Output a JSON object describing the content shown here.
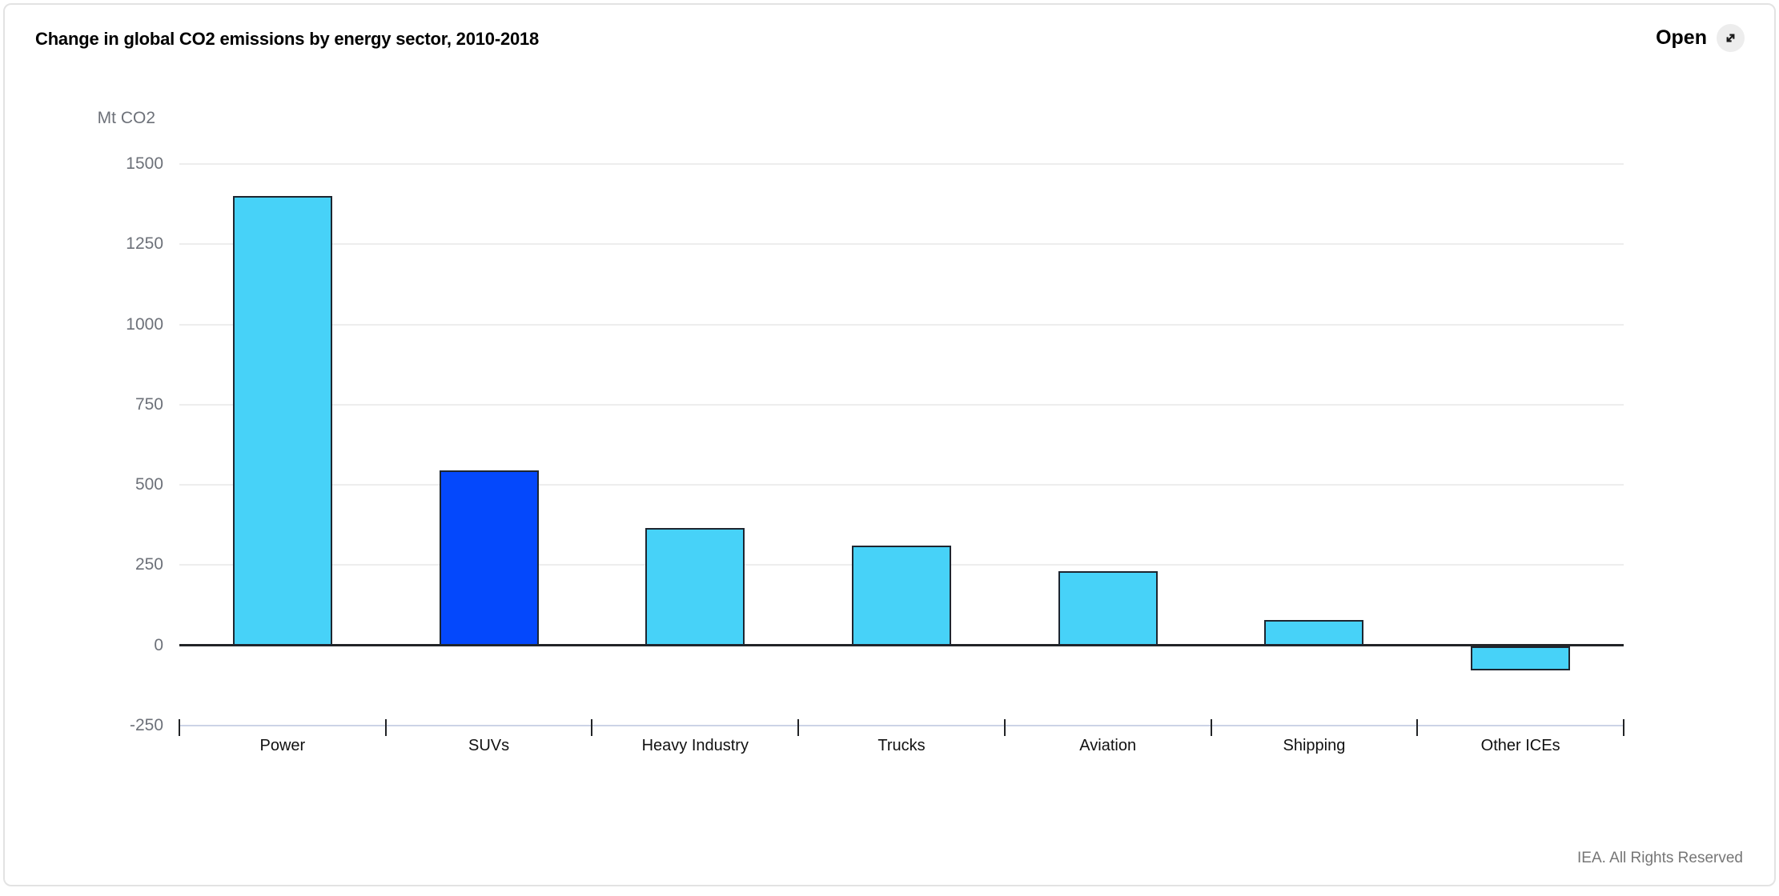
{
  "header": {
    "title": "Change in global CO2 emissions by energy sector, 2010-2018",
    "open_label": "Open"
  },
  "chart_data": {
    "type": "bar",
    "title": "Change in global CO2 emissions by energy sector, 2010-2018",
    "ylabel": "Mt CO2",
    "xlabel": "",
    "categories": [
      "Power",
      "SUVs",
      "Heavy Industry",
      "Trucks",
      "Aviation",
      "Shipping",
      "Other ICEs"
    ],
    "values": [
      1400,
      545,
      365,
      310,
      230,
      80,
      -75
    ],
    "bar_colors": [
      "#47d2f8",
      "#0448fc",
      "#47d2f8",
      "#47d2f8",
      "#47d2f8",
      "#47d2f8",
      "#47d2f8"
    ],
    "highlight_category": "SUVs",
    "ylim": [
      -250,
      1500
    ],
    "yticks": [
      1500,
      1250,
      1000,
      750,
      500,
      250,
      0,
      -250
    ],
    "gridline_values": [
      1500,
      1250,
      1000,
      750,
      500,
      250
    ],
    "grid": "horizontal",
    "legend": "none",
    "colors": {
      "bar_default": "#47d2f8",
      "bar_highlight": "#0448fc",
      "bar_border": "#1e2630",
      "gridline": "#ededed",
      "zero_line": "#222427",
      "axis_line": "#ccd3e6",
      "tick_label": "#6d7179"
    }
  },
  "footer": {
    "copyright": "IEA. All Rights Reserved"
  }
}
